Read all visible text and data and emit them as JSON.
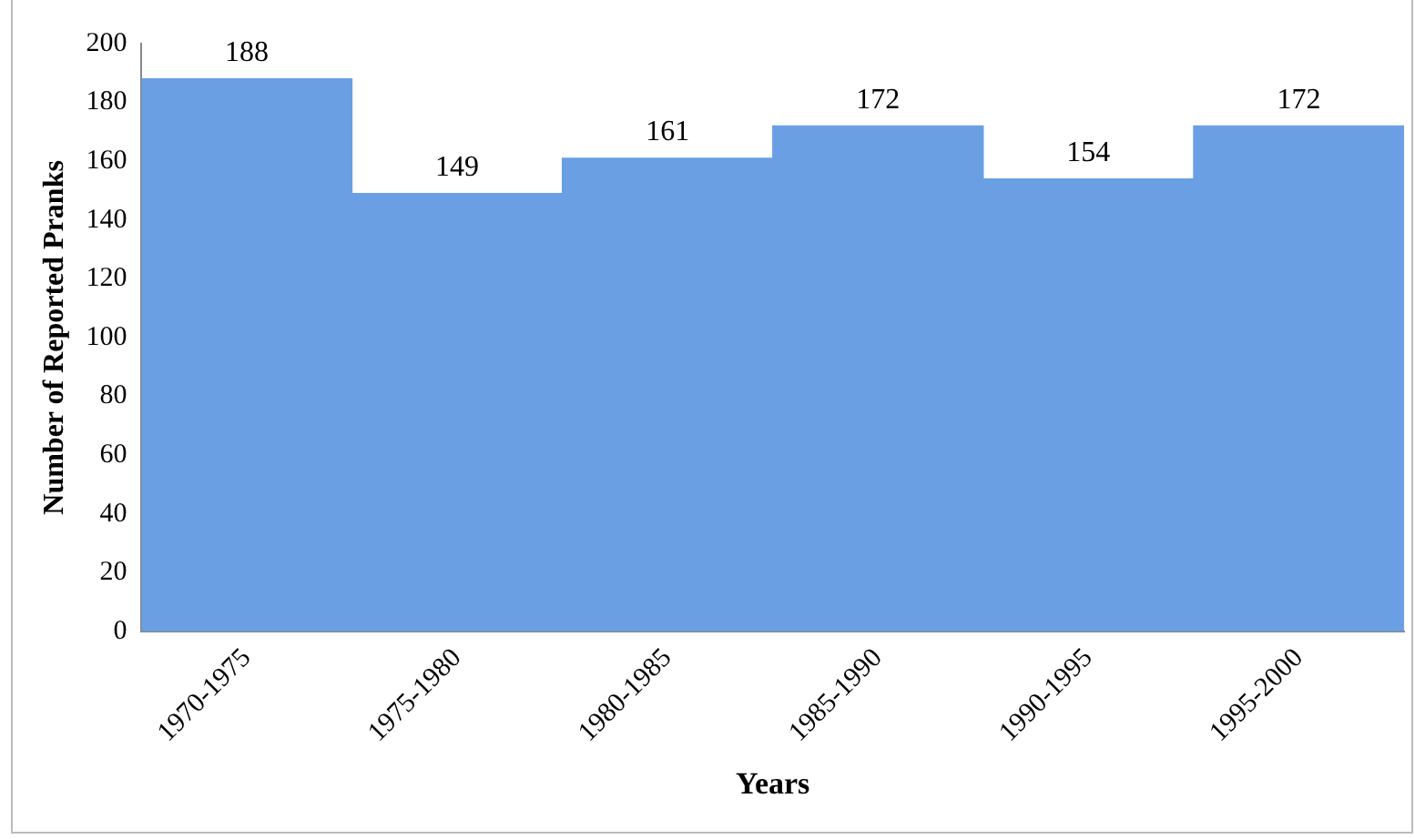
{
  "chart_data": {
    "type": "bar",
    "xlabel": "Years",
    "ylabel": "Number of Reported Pranks",
    "categories": [
      "1970-1975",
      "1975-1980",
      "1980-1985",
      "1985-1990",
      "1990-1995",
      "1995-2000"
    ],
    "values": [
      188,
      149,
      161,
      172,
      154,
      172
    ],
    "color": "#6a9fe4",
    "ylim": [
      0,
      200
    ],
    "yticks": [
      0,
      20,
      40,
      60,
      80,
      100,
      120,
      140,
      160,
      180,
      200
    ],
    "grid": false,
    "legend": false,
    "data_labels": true
  }
}
